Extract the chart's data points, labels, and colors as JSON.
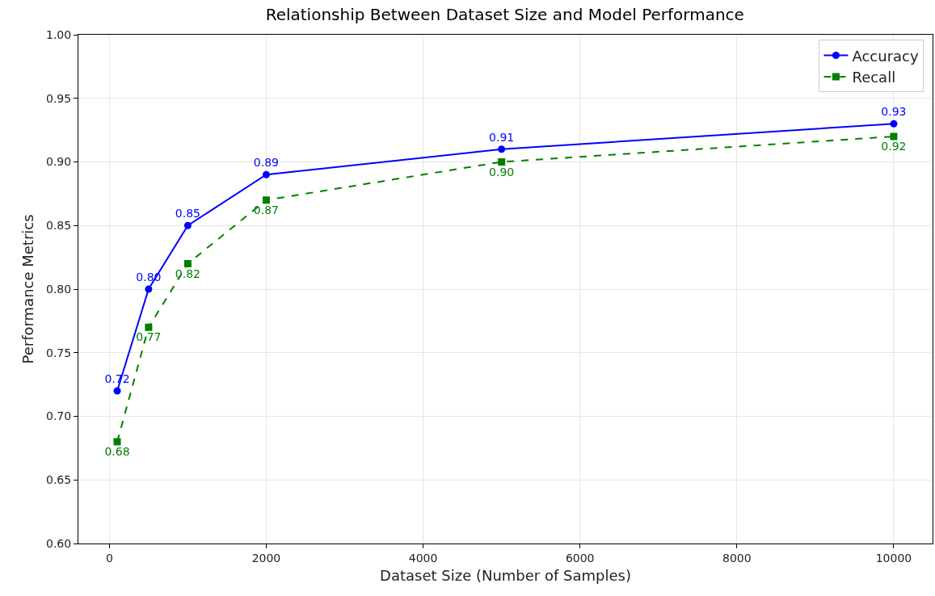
{
  "chart_data": {
    "type": "line",
    "title": "Relationship Between Dataset Size and Model Performance",
    "xlabel": "Dataset Size (Number of Samples)",
    "ylabel": "Performance Metrics",
    "x": [
      100,
      500,
      1000,
      2000,
      5000,
      10000
    ],
    "series": [
      {
        "name": "Accuracy",
        "color": "#0000ff",
        "marker": "circle",
        "line_style": "solid",
        "values": [
          0.72,
          0.8,
          0.85,
          0.89,
          0.91,
          0.93
        ],
        "value_labels": [
          "0.72",
          "0.80",
          "0.85",
          "0.89",
          "0.91",
          "0.93"
        ]
      },
      {
        "name": "Recall",
        "color": "#008000",
        "marker": "square",
        "line_style": "dashed",
        "values": [
          0.68,
          0.77,
          0.82,
          0.87,
          0.9,
          0.92
        ],
        "value_labels": [
          "0.68",
          "0.77",
          "0.82",
          "0.87",
          "0.90",
          "0.92"
        ]
      }
    ],
    "xlim": [
      -395,
      10495
    ],
    "xticks": [
      0,
      2000,
      4000,
      6000,
      8000,
      10000
    ],
    "ylim": [
      0.6,
      1.0
    ],
    "yticks": [
      {
        "value": 0.6,
        "label": "0.60"
      },
      {
        "value": 0.65,
        "label": "0.65"
      },
      {
        "value": 0.7,
        "label": "0.70"
      },
      {
        "value": 0.75,
        "label": "0.75"
      },
      {
        "value": 0.8,
        "label": "0.80"
      },
      {
        "value": 0.85,
        "label": "0.85"
      },
      {
        "value": 0.9,
        "label": "0.90"
      },
      {
        "value": 0.95,
        "label": "0.95"
      },
      {
        "value": 1.0,
        "label": "1.00"
      }
    ],
    "grid": true,
    "legend": "top right"
  }
}
